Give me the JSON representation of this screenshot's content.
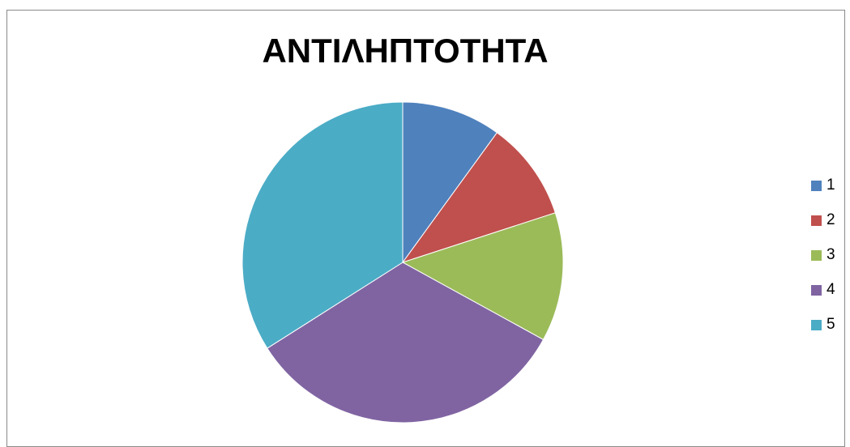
{
  "chart_data": {
    "type": "pie",
    "title": "ΑΝΤΙΛΗΠΤΟΤΗΤΑ",
    "categories": [
      "1",
      "2",
      "3",
      "4",
      "5"
    ],
    "values": [
      10,
      10,
      13,
      33,
      34
    ],
    "colors": [
      "#4F81BD",
      "#C0504D",
      "#9BBB59",
      "#8064A2",
      "#4BACC6"
    ],
    "start_angle_deg": 0,
    "direction": "clockwise",
    "legend_position": "right"
  }
}
